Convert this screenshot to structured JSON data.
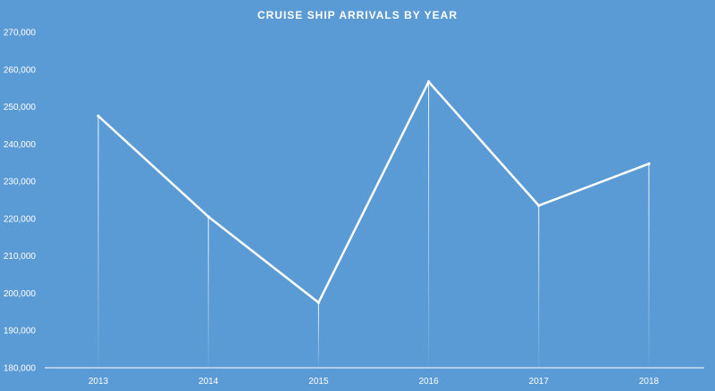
{
  "chart_data": {
    "type": "line",
    "title": "CRUISE SHIP ARRIVALS BY YEAR",
    "xlabel": "",
    "ylabel": "",
    "categories": [
      "2013",
      "2014",
      "2015",
      "2016",
      "2017",
      "2018"
    ],
    "series": [
      {
        "values": [
          247500,
          220500,
          197500,
          256700,
          223500,
          234700
        ]
      }
    ],
    "ylim": [
      180000,
      270000
    ],
    "yticks": [
      180000,
      190000,
      200000,
      210000,
      220000,
      230000,
      240000,
      250000,
      260000,
      270000
    ],
    "ytick_labels": [
      "180,000",
      "190,000",
      "200,000",
      "210,000",
      "220,000",
      "230,000",
      "240,000",
      "250,000",
      "260,000",
      "270,000"
    ],
    "grid": false,
    "drop_lines": true,
    "colors": {
      "background": "#5b9bd5",
      "line": "#ffffff",
      "text": "#ffffff"
    }
  }
}
